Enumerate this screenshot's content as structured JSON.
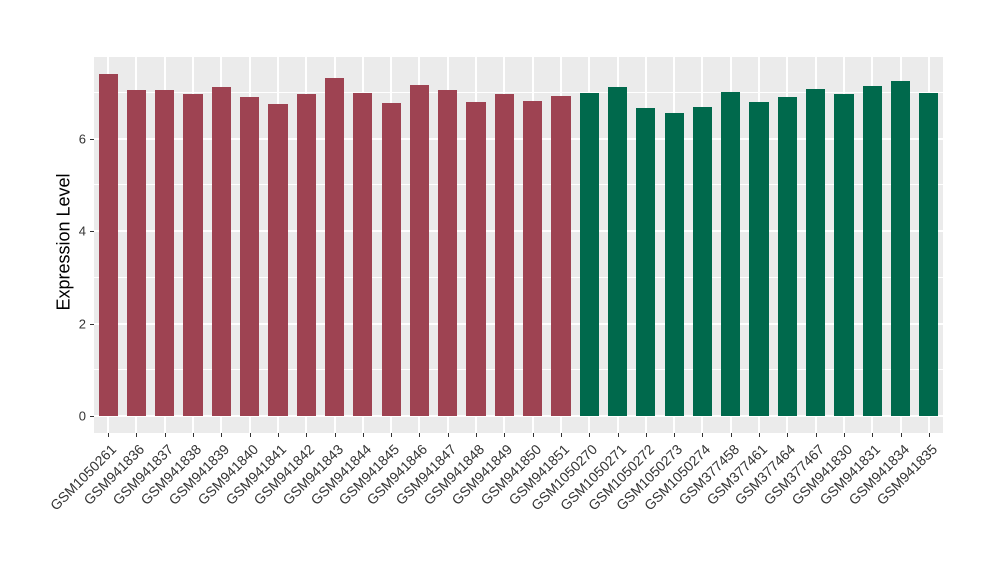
{
  "chart_data": {
    "type": "bar",
    "title": "",
    "xlabel": "",
    "ylabel": "Expression Level",
    "ylim": [
      -0.37,
      7.77
    ],
    "yticks_major": [
      0,
      2,
      4,
      6
    ],
    "yticks_minor": [
      1,
      3,
      5,
      7
    ],
    "grid": true,
    "legend_position": "none",
    "panel_background": "#EBEBEB",
    "gridline_color": "#FFFFFF",
    "group_colors": {
      "group1": "#9E4352",
      "group2": "#00694C"
    },
    "categories": [
      "GSM1050261",
      "GSM941836",
      "GSM941837",
      "GSM941838",
      "GSM941839",
      "GSM941840",
      "GSM941841",
      "GSM941842",
      "GSM941843",
      "GSM941844",
      "GSM941845",
      "GSM941846",
      "GSM941847",
      "GSM941848",
      "GSM941849",
      "GSM941850",
      "GSM941851",
      "GSM1050270",
      "GSM1050271",
      "GSM1050272",
      "GSM1050273",
      "GSM1050274",
      "GSM377458",
      "GSM377461",
      "GSM377464",
      "GSM377467",
      "GSM941830",
      "GSM941831",
      "GSM941834",
      "GSM941835"
    ],
    "values": [
      7.4,
      7.06,
      7.06,
      6.97,
      7.12,
      6.9,
      6.75,
      6.97,
      7.32,
      6.99,
      6.77,
      7.16,
      7.06,
      6.8,
      6.97,
      6.82,
      6.93,
      6.99,
      7.12,
      6.67,
      6.56,
      6.69,
      7.01,
      6.79,
      6.9,
      7.08,
      6.96,
      7.15,
      7.24,
      7.0
    ],
    "bar_groups": [
      "group1",
      "group1",
      "group1",
      "group1",
      "group1",
      "group1",
      "group1",
      "group1",
      "group1",
      "group1",
      "group1",
      "group1",
      "group1",
      "group1",
      "group1",
      "group1",
      "group1",
      "group2",
      "group2",
      "group2",
      "group2",
      "group2",
      "group2",
      "group2",
      "group2",
      "group2",
      "group2",
      "group2",
      "group2",
      "group2"
    ]
  }
}
